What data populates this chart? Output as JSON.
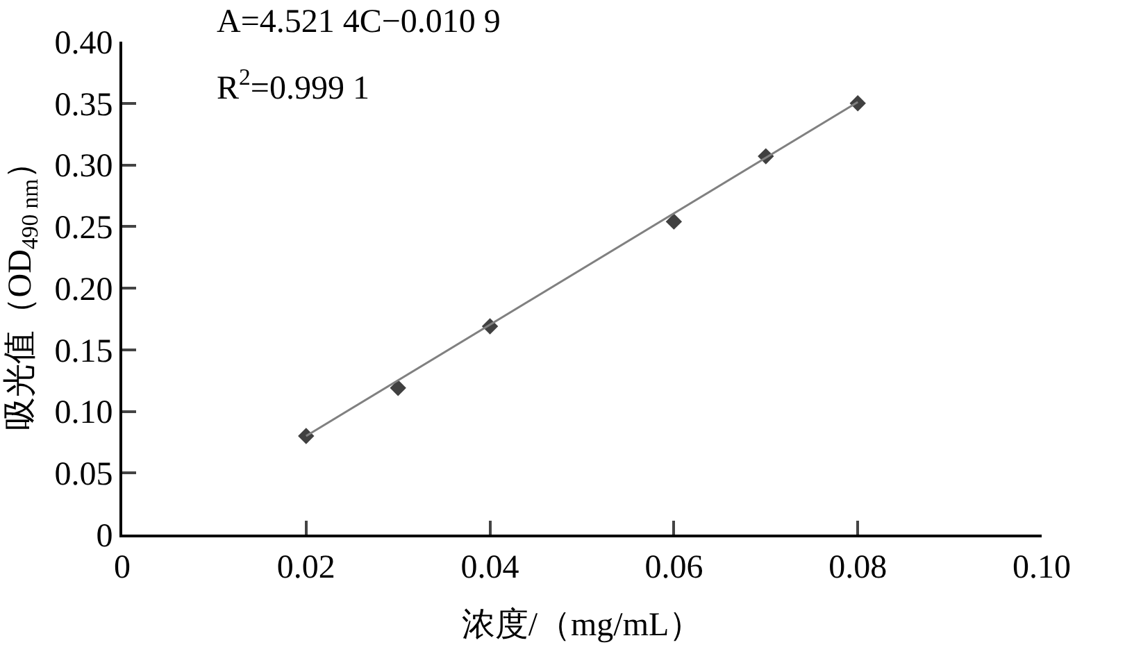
{
  "chart_data": {
    "type": "scatter",
    "xlabel": "浓度/（mg/mL）",
    "ylabel": "吸光值（OD$_{490 nm}$）",
    "xlim": [
      0,
      0.1
    ],
    "xticks": [
      0,
      0.02,
      0.04,
      0.06,
      0.08,
      {
        "value": 0.1,
        "label": "0.10"
      }
    ],
    "ylim": [
      0,
      0.4
    ],
    "yticks": [
      0,
      0.05,
      {
        "value": 0.1,
        "label": "0.10"
      },
      0.15,
      {
        "value": 0.2,
        "label": "0.20"
      },
      0.25,
      {
        "value": 0.3,
        "label": "0.30"
      },
      0.35,
      {
        "value": 0.4,
        "label": "0.40"
      }
    ],
    "series": [
      {
        "color": "#404040",
        "marker": "diamond",
        "x": [
          0.02,
          0.03,
          0.04,
          0.06,
          0.07,
          0.08
        ],
        "values": [
          0.08,
          0.119,
          0.169,
          0.254,
          0.307,
          0.35
        ]
      },
      {
        "type": "line",
        "color": "#808080",
        "marker": "none",
        "x": [
          0.02,
          0.08
        ],
        "values": [
          0.08,
          0.351
        ]
      }
    ],
    "annotations": [
      "A=4.521 4C−0.010 9",
      "R$^{2}$=0.999 1"
    ],
    "tick_labels": "xy"
  }
}
